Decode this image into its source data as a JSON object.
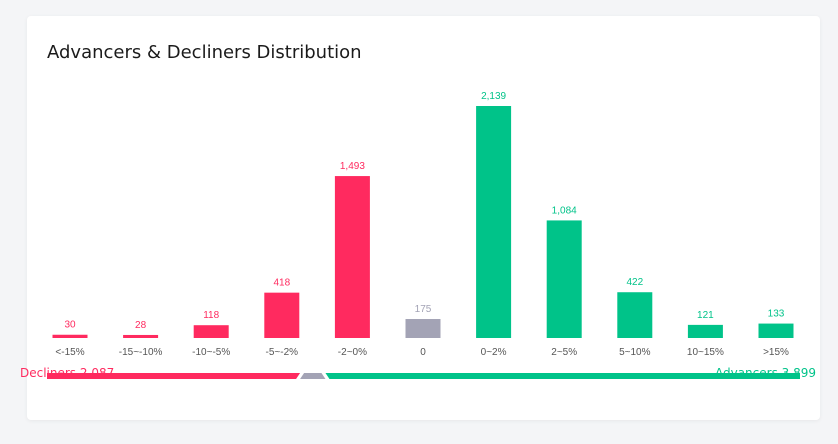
{
  "card": {
    "title": "Advancers & Decliners Distribution"
  },
  "colors": {
    "decliner": "#ff2a5f",
    "neutral": "#a3a3b5",
    "advancer": "#00c389",
    "tick_text": "#555555"
  },
  "chart_data": {
    "type": "bar",
    "title": "Advancers & Decliners Distribution",
    "categories": [
      "<-15%",
      "-15~-10%",
      "-10~-5%",
      "-5~-2%",
      "-2~0%",
      "0",
      "0~2%",
      "2~5%",
      "5~10%",
      "10~15%",
      ">15%"
    ],
    "values": [
      30,
      28,
      118,
      418,
      1493,
      175,
      2139,
      1084,
      422,
      121,
      133
    ],
    "value_labels": [
      "30",
      "28",
      "118",
      "418",
      "1,493",
      "175",
      "2,139",
      "1,084",
      "422",
      "121",
      "133"
    ],
    "bar_groups": [
      "decliner",
      "decliner",
      "decliner",
      "decliner",
      "decliner",
      "neutral",
      "advancer",
      "advancer",
      "advancer",
      "advancer",
      "advancer"
    ],
    "xlabel": "",
    "ylabel": "",
    "grid": false
  },
  "summary": {
    "decliners_label": "Decliners 2,087",
    "advancers_label": "Advancers 3,899",
    "decliners_count": 2087,
    "neutral_count": 175,
    "advancers_count": 3899
  }
}
